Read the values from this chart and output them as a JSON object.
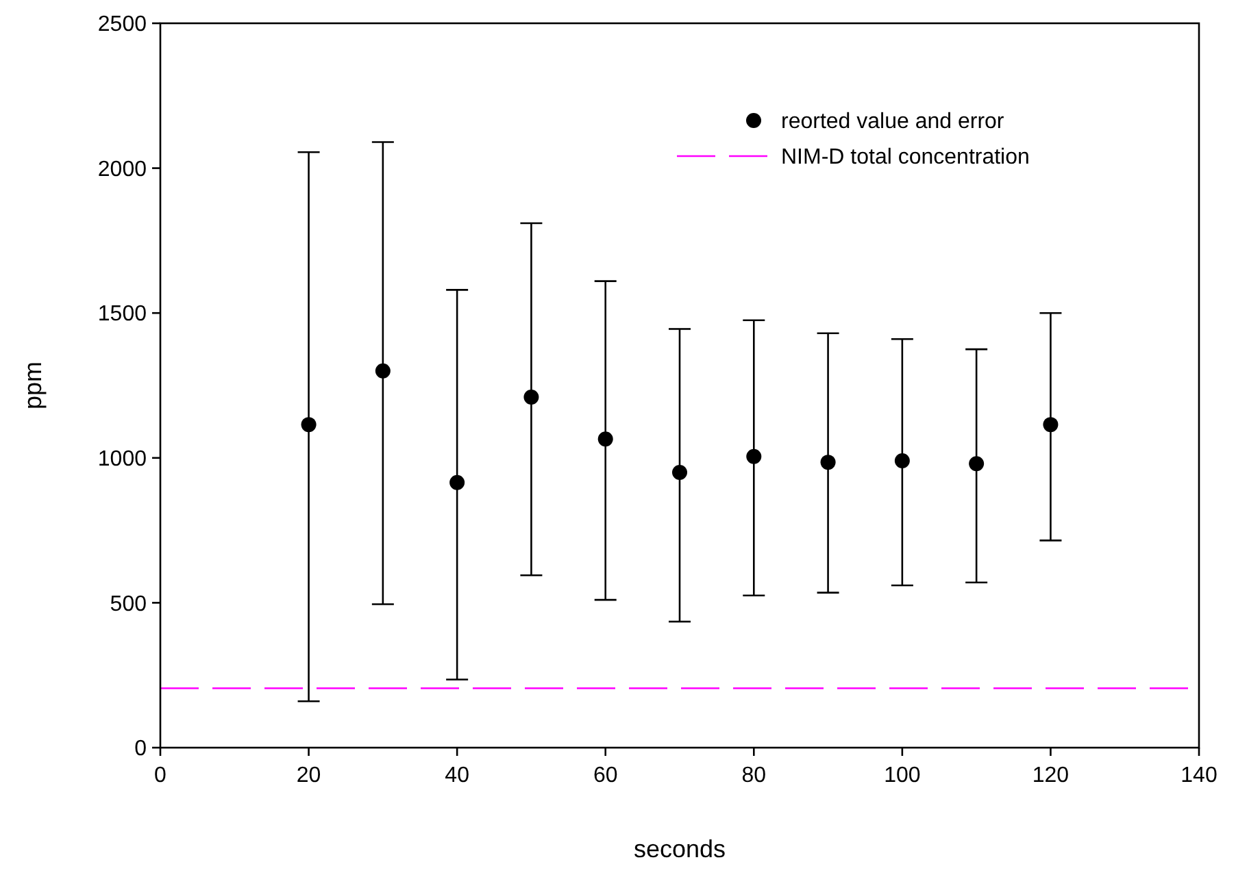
{
  "chart_data": {
    "type": "scatter",
    "xlabel": "seconds",
    "ylabel": "ppm",
    "x": [
      20,
      30,
      40,
      50,
      60,
      70,
      80,
      90,
      100,
      110,
      120
    ],
    "series": [
      {
        "name": "reorted value and error",
        "color": "#000000",
        "values": [
          1115,
          1300,
          915,
          1210,
          1065,
          950,
          1005,
          985,
          990,
          980,
          1115
        ],
        "errors": [
          [
            160,
            2055
          ],
          [
            495,
            2090
          ],
          [
            235,
            1580
          ],
          [
            595,
            1810
          ],
          [
            510,
            1610
          ],
          [
            435,
            1445
          ],
          [
            525,
            1475
          ],
          [
            535,
            1430
          ],
          [
            560,
            1410
          ],
          [
            570,
            1375
          ],
          [
            715,
            1500
          ]
        ]
      },
      {
        "type": "line",
        "name": "NIM-D total concentration",
        "color": "#ff00ff",
        "x": [
          0,
          140
        ],
        "values": [
          205,
          205
        ],
        "line_style": "dashed",
        "marker": "none"
      }
    ],
    "xlim": [
      0,
      140
    ],
    "xticks": [
      0,
      20,
      40,
      60,
      80,
      100,
      120,
      140
    ],
    "ylim": [
      0,
      2500
    ],
    "yticks": [
      0,
      500,
      1000,
      1500,
      2000,
      2500
    ],
    "marker": "circle",
    "legend": "top right"
  }
}
